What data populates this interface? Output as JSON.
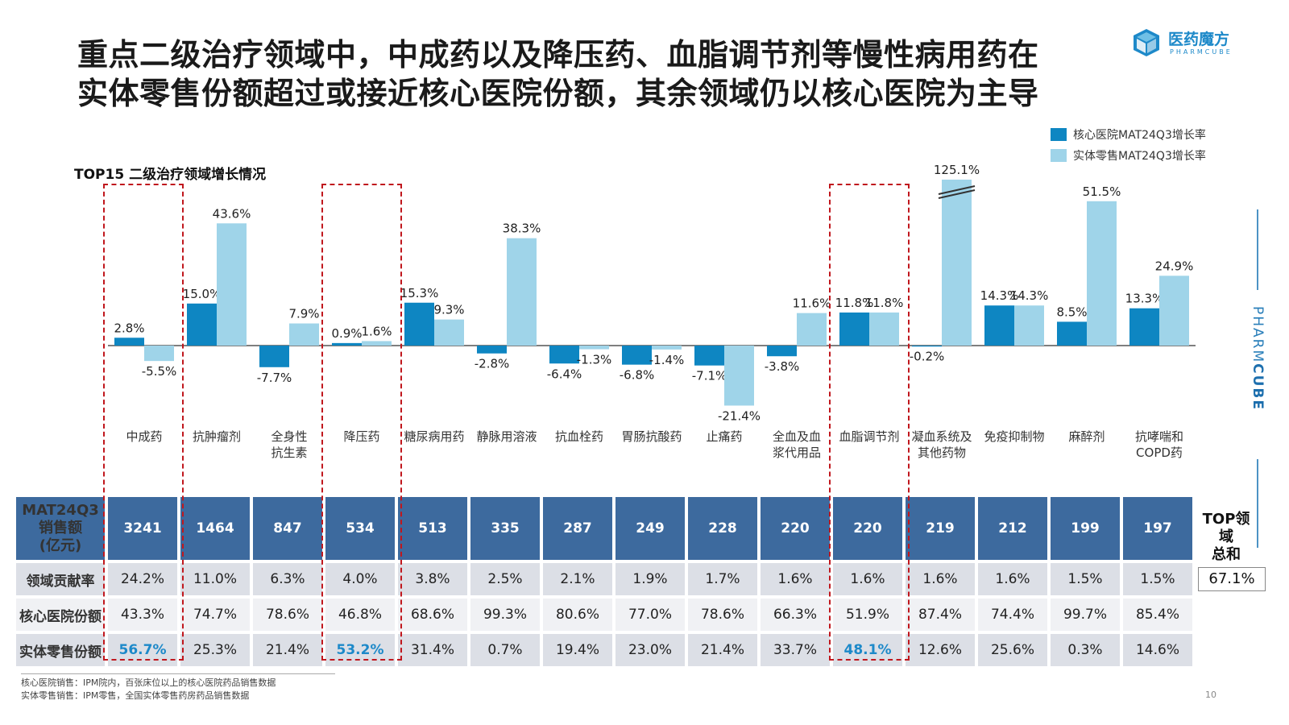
{
  "title": {
    "line1": "重点二级治疗领域中，中成药以及降压药、血脂调节剂等慢性病用药在",
    "line2": "实体零售份额超过或接近核心医院份额，其余领域仍以核心医院为主导"
  },
  "logo": {
    "cn": "医药魔方",
    "en": "PHARMCUBE"
  },
  "side_brand": {
    "a": "PHARM",
    "b": "CUBE"
  },
  "colors": {
    "core": "#0e86c2",
    "retail": "#9fd4e9",
    "table_head": "#3d6a9e",
    "highlight": "#1d89c9",
    "box": "#c0171d"
  },
  "chart_data": {
    "type": "bar",
    "title": "TOP15 二级治疗领域增长情况",
    "categories": [
      "中成药",
      "抗肿瘤剂",
      "全身性\n抗生素",
      "降压药",
      "糖尿病用药",
      "静脉用溶液",
      "抗血栓药",
      "胃肠抗酸药",
      "止痛药",
      "全血及血\n浆代用品",
      "血脂调节剂",
      "凝血系统及\n其他药物",
      "免疫抑制物",
      "麻醉剂",
      "抗哮喘和\nCOPD药"
    ],
    "series": [
      {
        "name": "核心医院MAT24Q3增长率",
        "values": [
          2.8,
          15.0,
          -7.7,
          0.9,
          15.3,
          -2.8,
          -6.4,
          -6.8,
          -7.1,
          -3.8,
          11.8,
          -0.2,
          14.3,
          8.5,
          13.3
        ]
      },
      {
        "name": "实体零售MAT24Q3增长率",
        "values": [
          -5.5,
          43.6,
          7.9,
          1.6,
          9.3,
          38.3,
          -1.3,
          -1.4,
          -21.4,
          11.6,
          11.8,
          125.1,
          14.3,
          51.5,
          24.9
        ]
      }
    ],
    "value_labels": [
      [
        "2.8%",
        "15.0%",
        "-7.7%",
        "0.9%",
        "15.3%",
        "-2.8%",
        "-6.4%",
        "-6.8%",
        "-7.1%",
        "-3.8%",
        "11.8%",
        "-0.2%",
        "14.3%",
        "8.5%",
        "13.3%"
      ],
      [
        "-5.5%",
        "43.6%",
        "7.9%",
        "1.6%",
        "9.3%",
        "38.3%",
        "-1.3%",
        "-1.4%",
        "-21.4%",
        "11.6%",
        "11.8%",
        "125.1%",
        "14.3%",
        "51.5%",
        "24.9%"
      ]
    ],
    "broken_axis_category": "凝血系统及\n其他药物",
    "highlighted_categories": [
      "中成药",
      "降压药",
      "血脂调节剂"
    ],
    "legend_position": "top-right",
    "grid": false
  },
  "table": {
    "rows": [
      {
        "label": "MAT24Q3\n销售额\n(亿元)",
        "values": [
          "3241",
          "1464",
          "847",
          "534",
          "513",
          "335",
          "287",
          "249",
          "228",
          "220",
          "220",
          "219",
          "212",
          "199",
          "197"
        ]
      },
      {
        "label": "领域贡献率",
        "values": [
          "24.2%",
          "11.0%",
          "6.3%",
          "4.0%",
          "3.8%",
          "2.5%",
          "2.1%",
          "1.9%",
          "1.7%",
          "1.6%",
          "1.6%",
          "1.6%",
          "1.6%",
          "1.5%",
          "1.5%"
        ]
      },
      {
        "label": "核心医院份额",
        "values": [
          "43.3%",
          "74.7%",
          "78.6%",
          "46.8%",
          "68.6%",
          "99.3%",
          "80.6%",
          "77.0%",
          "78.6%",
          "66.3%",
          "51.9%",
          "87.4%",
          "74.4%",
          "99.7%",
          "85.4%"
        ]
      },
      {
        "label": "实体零售份额",
        "values": [
          "56.7%",
          "25.3%",
          "21.4%",
          "53.2%",
          "31.4%",
          "0.7%",
          "19.4%",
          "23.0%",
          "21.4%",
          "33.7%",
          "48.1%",
          "12.6%",
          "25.6%",
          "0.3%",
          "14.6%"
        ]
      }
    ],
    "top_label": "TOP领域\n总和",
    "top_total": "67.1%"
  },
  "sources": {
    "line1": "核心医院销售：IPM院内，百张床位以上的核心医院药品销售数据",
    "line2": "实体零售销售：IPM零售，全国实体零售药房药品销售数据"
  },
  "page_number": "10"
}
